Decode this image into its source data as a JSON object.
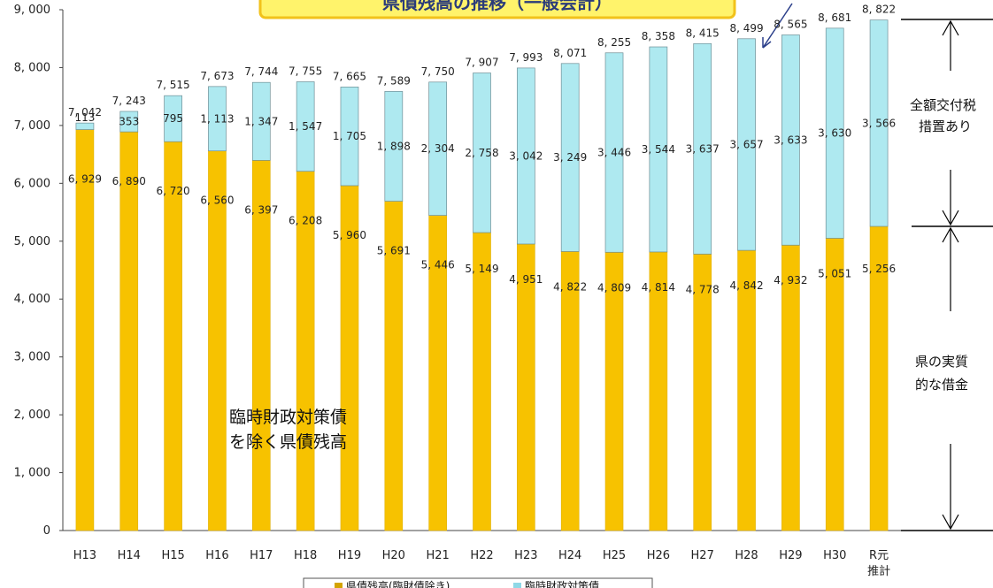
{
  "chart_data": {
    "type": "bar",
    "stacked": true,
    "categories": [
      "H13",
      "H14",
      "H15",
      "H16",
      "H17",
      "H18",
      "H19",
      "H20",
      "H21",
      "H22",
      "H23",
      "H24",
      "H25",
      "H26",
      "H27",
      "H28",
      "H29",
      "H30",
      "R元\n推計"
    ],
    "series": [
      {
        "name": "県債残高(臨財債除き)",
        "color": "#f7c200",
        "values": [
          6929,
          6890,
          6720,
          6560,
          6397,
          6208,
          5960,
          5691,
          5446,
          5149,
          4951,
          4822,
          4809,
          4814,
          4778,
          4842,
          4932,
          5051,
          5256
        ]
      },
      {
        "name": "臨時財政対策債",
        "color": "#aee9f0",
        "values": [
          113,
          353,
          795,
          1113,
          1347,
          1547,
          1705,
          1898,
          2304,
          2758,
          3042,
          3249,
          3446,
          3544,
          3637,
          3657,
          3633,
          3630,
          3566
        ]
      }
    ],
    "totals": [
      7042,
      7243,
      7515,
      7673,
      7744,
      7755,
      7665,
      7589,
      7750,
      7907,
      7993,
      8071,
      8255,
      8358,
      8415,
      8499,
      8565,
      8681,
      8822
    ],
    "ylim": [
      0,
      9000
    ],
    "yticks": [
      0,
      1000,
      2000,
      3000,
      4000,
      5000,
      6000,
      7000,
      8000,
      9000
    ],
    "number_format": "ja-comma-space",
    "annotations": {
      "inner_label": [
        "臨時財政対策債",
        "を除く県債残高"
      ],
      "right_upper": [
        "全額交付税",
        "措置あり"
      ],
      "right_lower": [
        "県の実質",
        "的な借金"
      ],
      "banner_partial": "県債残高の推移（一般会計）"
    },
    "legend": "bottom-center"
  }
}
